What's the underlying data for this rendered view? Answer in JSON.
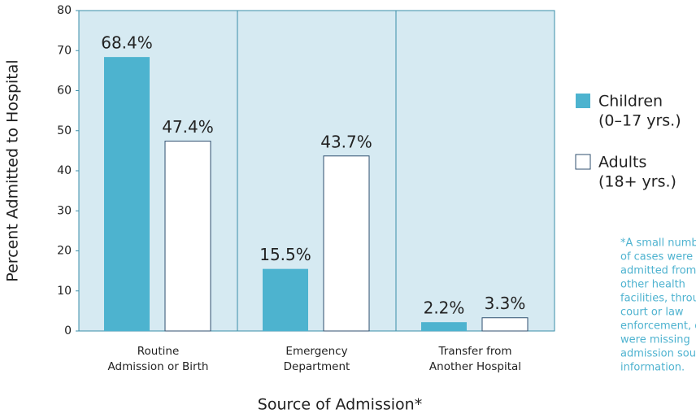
{
  "chart_data": {
    "type": "bar",
    "categories": [
      [
        "Routine",
        "Admission or Birth"
      ],
      [
        "Emergency",
        "Department"
      ],
      [
        "Transfer from",
        "Another Hospital"
      ]
    ],
    "series": [
      {
        "name": [
          "Children",
          "(0–17 yrs.)"
        ],
        "color": "#4db3cf",
        "values": [
          68.4,
          15.5,
          2.2
        ],
        "value_labels": [
          "68.4%",
          "15.5%",
          "2.2%"
        ]
      },
      {
        "name": [
          "Adults",
          "(18+ yrs.)"
        ],
        "color": "#ffffff",
        "values": [
          47.4,
          43.7,
          3.3
        ],
        "value_labels": [
          "47.4%",
          "43.7%",
          "3.3%"
        ]
      }
    ],
    "ylim": [
      0,
      80
    ],
    "yticks": [
      0,
      10,
      20,
      30,
      40,
      50,
      60,
      70,
      80
    ],
    "ylabel": "Percent Admitted to Hospital",
    "xlabel": "Source of Admission*",
    "footnote": [
      "*A small number",
      "of cases were",
      "admitted from",
      "other health",
      "facilities, through",
      "court or law",
      "enforcement, or",
      "were missing",
      "admission source",
      "information."
    ]
  }
}
